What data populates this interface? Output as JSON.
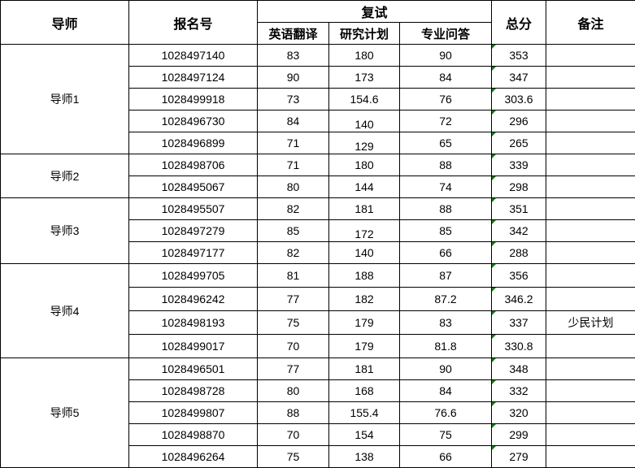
{
  "headers": {
    "advisor": "导师",
    "reg_no": "报名号",
    "retest": "复试",
    "english": "英语翻译",
    "research": "研究计划",
    "qa": "专业问答",
    "total": "总分",
    "note": "备注"
  },
  "groups": [
    {
      "advisor": "导师1",
      "rows": [
        {
          "id": "1028497140",
          "english": "83",
          "research": "180",
          "qa": "90",
          "total": "353",
          "note": ""
        },
        {
          "id": "1028497124",
          "english": "90",
          "research": "173",
          "qa": "84",
          "total": "347",
          "note": ""
        },
        {
          "id": "1028499918",
          "english": "73",
          "research": "154.6",
          "qa": "76",
          "total": "303.6",
          "note": ""
        },
        {
          "id": "1028496730",
          "english": "84",
          "research": "140",
          "qa": "72",
          "total": "296",
          "note": ""
        },
        {
          "id": "1028496899",
          "english": "71",
          "research": "129",
          "qa": "65",
          "total": "265",
          "note": ""
        }
      ]
    },
    {
      "advisor": "导师2",
      "rows": [
        {
          "id": "1028498706",
          "english": "71",
          "research": "180",
          "qa": "88",
          "total": "339",
          "note": ""
        },
        {
          "id": "1028495067",
          "english": "80",
          "research": "144",
          "qa": "74",
          "total": "298",
          "note": ""
        }
      ]
    },
    {
      "advisor": "导师3",
      "rows": [
        {
          "id": "1028495507",
          "english": "82",
          "research": "181",
          "qa": "88",
          "total": "351",
          "note": ""
        },
        {
          "id": "1028497279",
          "english": "85",
          "research": "172",
          "qa": "85",
          "total": "342",
          "note": ""
        },
        {
          "id": "1028497177",
          "english": "82",
          "research": "140",
          "qa": "66",
          "total": "288",
          "note": ""
        }
      ]
    },
    {
      "advisor": "导师4",
      "rows": [
        {
          "id": "1028499705",
          "english": "81",
          "research": "188",
          "qa": "87",
          "total": "356",
          "note": ""
        },
        {
          "id": "1028496242",
          "english": "77",
          "research": "182",
          "qa": "87.2",
          "total": "346.2",
          "note": ""
        },
        {
          "id": "1028498193",
          "english": "75",
          "research": "179",
          "qa": "83",
          "total": "337",
          "note": "少民计划"
        },
        {
          "id": "1028499017",
          "english": "70",
          "research": "179",
          "qa": "81.8",
          "total": "330.8",
          "note": ""
        }
      ]
    },
    {
      "advisor": "导师5",
      "rows": [
        {
          "id": "1028496501",
          "english": "77",
          "research": "181",
          "qa": "90",
          "total": "348",
          "note": ""
        },
        {
          "id": "1028498728",
          "english": "80",
          "research": "168",
          "qa": "84",
          "total": "332",
          "note": ""
        },
        {
          "id": "1028499807",
          "english": "88",
          "research": "155.4",
          "qa": "76.6",
          "total": "320",
          "note": ""
        },
        {
          "id": "1028498870",
          "english": "70",
          "research": "154",
          "qa": "75",
          "total": "299",
          "note": ""
        },
        {
          "id": "1028496264",
          "english": "75",
          "research": "138",
          "qa": "66",
          "total": "279",
          "note": ""
        }
      ]
    }
  ],
  "colors": {
    "grid": "#000000",
    "indicator": "#1a7a1a"
  }
}
